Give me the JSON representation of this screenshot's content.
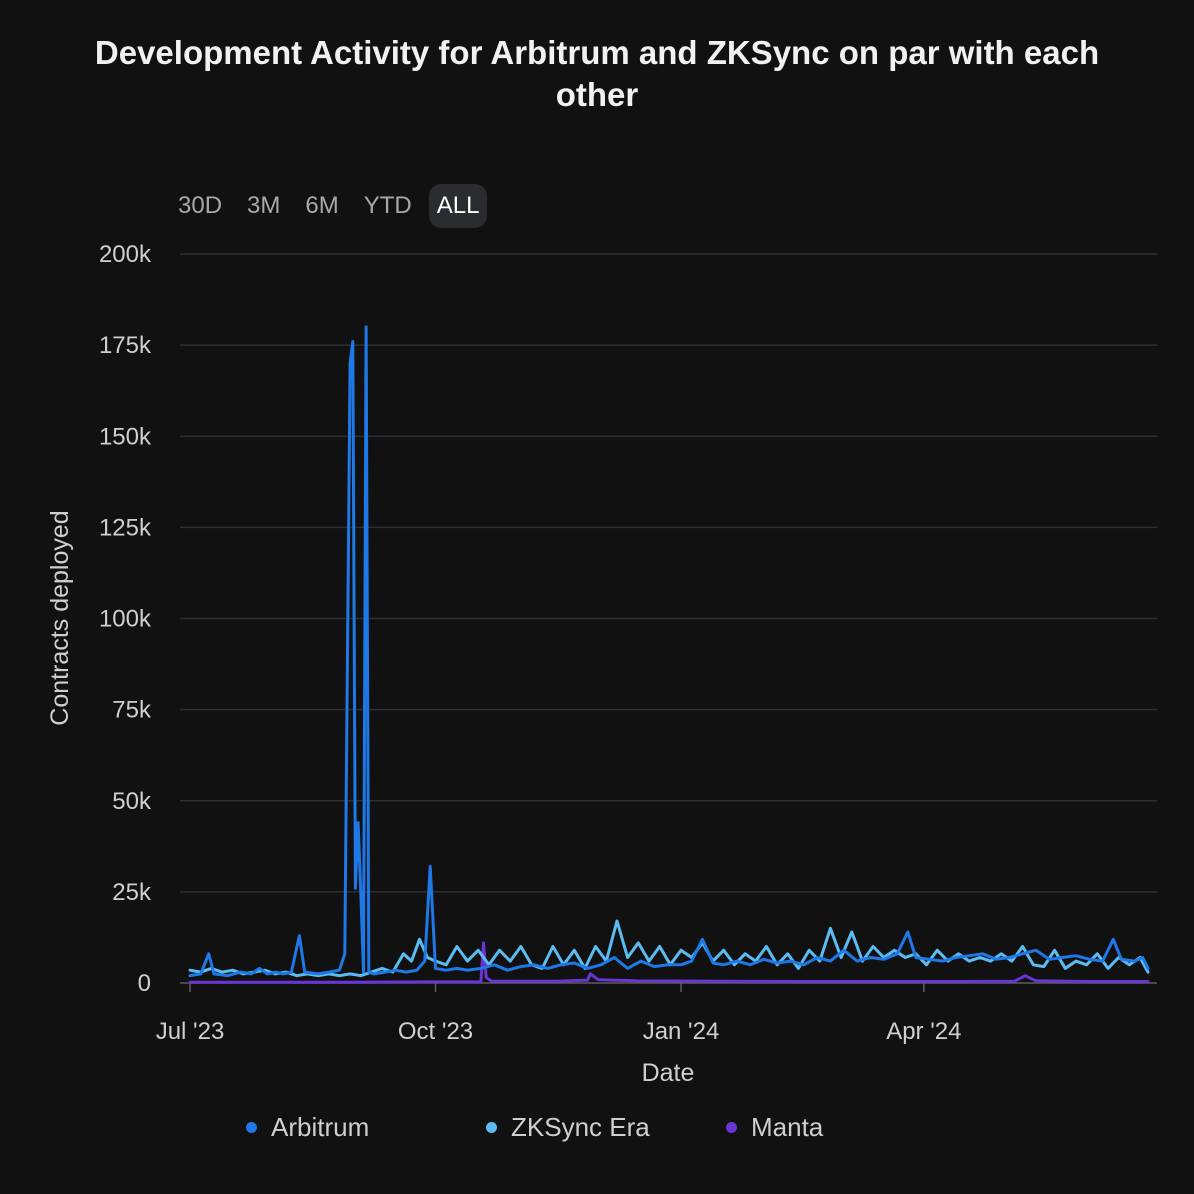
{
  "title": "Development Activity for Arbitrum and ZKSync on par with each other",
  "range_buttons": [
    "30D",
    "3M",
    "6M",
    "YTD",
    "ALL"
  ],
  "active_range": "ALL",
  "chart_data": {
    "type": "line",
    "title": "Development Activity for Arbitrum and ZKSync on par with each other",
    "xlabel": "Date",
    "ylabel": "Contracts deployed",
    "ylim": [
      0,
      200000
    ],
    "yticks": [
      0,
      25000,
      50000,
      75000,
      100000,
      125000,
      150000,
      175000,
      200000
    ],
    "ytick_labels": [
      "0",
      "25k",
      "50k",
      "75k",
      "100k",
      "125k",
      "150k",
      "175k",
      "200k"
    ],
    "xlim": [
      "2023-07-01",
      "2024-06-24"
    ],
    "xticks": [
      "2023-07-01",
      "2023-10-01",
      "2024-01-01",
      "2024-04-01"
    ],
    "xtick_labels": [
      "Jul '23",
      "Oct '23",
      "Jan '24",
      "Apr '24"
    ],
    "grid": true,
    "legend_position": "bottom",
    "series": [
      {
        "name": "Arbitrum",
        "color": "#1e78e6",
        "points": [
          [
            "2023-07-01",
            2000
          ],
          [
            "2023-07-05",
            2500
          ],
          [
            "2023-07-08",
            8000
          ],
          [
            "2023-07-10",
            2500
          ],
          [
            "2023-07-15",
            2000
          ],
          [
            "2023-07-20",
            3000
          ],
          [
            "2023-07-24",
            2500
          ],
          [
            "2023-07-27",
            4000
          ],
          [
            "2023-07-30",
            2500
          ],
          [
            "2023-08-02",
            3000
          ],
          [
            "2023-08-05",
            2500
          ],
          [
            "2023-08-08",
            3000
          ],
          [
            "2023-08-11",
            13000
          ],
          [
            "2023-08-13",
            3000
          ],
          [
            "2023-08-18",
            2500
          ],
          [
            "2023-08-22",
            3000
          ],
          [
            "2023-08-26",
            3500
          ],
          [
            "2023-08-28",
            8000
          ],
          [
            "2023-08-30",
            170000
          ],
          [
            "2023-08-31",
            176000
          ],
          [
            "2023-09-01",
            26000
          ],
          [
            "2023-09-02",
            44000
          ],
          [
            "2023-09-03",
            25000
          ],
          [
            "2023-09-04",
            3000
          ],
          [
            "2023-09-05",
            180000
          ],
          [
            "2023-09-06",
            3000
          ],
          [
            "2023-09-08",
            2500
          ],
          [
            "2023-09-12",
            3000
          ],
          [
            "2023-09-16",
            3500
          ],
          [
            "2023-09-20",
            3000
          ],
          [
            "2023-09-24",
            3500
          ],
          [
            "2023-09-27",
            6000
          ],
          [
            "2023-09-29",
            32000
          ],
          [
            "2023-10-01",
            4000
          ],
          [
            "2023-10-05",
            3500
          ],
          [
            "2023-10-09",
            4000
          ],
          [
            "2023-10-13",
            3500
          ],
          [
            "2023-10-18",
            4000
          ],
          [
            "2023-10-23",
            5000
          ],
          [
            "2023-10-28",
            3500
          ],
          [
            "2023-11-02",
            4500
          ],
          [
            "2023-11-07",
            5000
          ],
          [
            "2023-11-12",
            4000
          ],
          [
            "2023-11-17",
            5000
          ],
          [
            "2023-11-22",
            5500
          ],
          [
            "2023-11-27",
            4000
          ],
          [
            "2023-12-02",
            5000
          ],
          [
            "2023-12-07",
            7000
          ],
          [
            "2023-12-12",
            4000
          ],
          [
            "2023-12-17",
            6000
          ],
          [
            "2023-12-22",
            4500
          ],
          [
            "2023-12-27",
            5000
          ],
          [
            "2024-01-01",
            5000
          ],
          [
            "2024-01-05",
            6000
          ],
          [
            "2024-01-09",
            12000
          ],
          [
            "2024-01-13",
            5500
          ],
          [
            "2024-01-17",
            5000
          ],
          [
            "2024-01-22",
            6000
          ],
          [
            "2024-01-27",
            5000
          ],
          [
            "2024-02-01",
            6500
          ],
          [
            "2024-02-06",
            5500
          ],
          [
            "2024-02-11",
            6000
          ],
          [
            "2024-02-16",
            5000
          ],
          [
            "2024-02-21",
            7000
          ],
          [
            "2024-02-26",
            6000
          ],
          [
            "2024-03-02",
            9000
          ],
          [
            "2024-03-07",
            6000
          ],
          [
            "2024-03-12",
            7000
          ],
          [
            "2024-03-17",
            6500
          ],
          [
            "2024-03-22",
            8000
          ],
          [
            "2024-03-26",
            14000
          ],
          [
            "2024-03-29",
            7000
          ],
          [
            "2024-04-03",
            6500
          ],
          [
            "2024-04-08",
            6000
          ],
          [
            "2024-04-13",
            7000
          ],
          [
            "2024-04-18",
            7500
          ],
          [
            "2024-04-23",
            8000
          ],
          [
            "2024-04-28",
            6500
          ],
          [
            "2024-05-03",
            7000
          ],
          [
            "2024-05-08",
            8000
          ],
          [
            "2024-05-13",
            9000
          ],
          [
            "2024-05-18",
            6500
          ],
          [
            "2024-05-23",
            7000
          ],
          [
            "2024-05-28",
            7500
          ],
          [
            "2024-06-02",
            6500
          ],
          [
            "2024-06-07",
            6000
          ],
          [
            "2024-06-11",
            12000
          ],
          [
            "2024-06-14",
            6500
          ],
          [
            "2024-06-19",
            6000
          ],
          [
            "2024-06-22",
            7000
          ],
          [
            "2024-06-24",
            4000
          ]
        ]
      },
      {
        "name": "ZKSync Era",
        "color": "#5bbcf2",
        "points": [
          [
            "2023-07-01",
            3500
          ],
          [
            "2023-07-05",
            3000
          ],
          [
            "2023-07-09",
            4000
          ],
          [
            "2023-07-13",
            3000
          ],
          [
            "2023-07-17",
            3500
          ],
          [
            "2023-07-21",
            2500
          ],
          [
            "2023-07-25",
            3000
          ],
          [
            "2023-07-29",
            3500
          ],
          [
            "2023-08-02",
            2500
          ],
          [
            "2023-08-06",
            3000
          ],
          [
            "2023-08-10",
            2000
          ],
          [
            "2023-08-14",
            2500
          ],
          [
            "2023-08-18",
            2000
          ],
          [
            "2023-08-22",
            2500
          ],
          [
            "2023-08-26",
            2000
          ],
          [
            "2023-08-30",
            2500
          ],
          [
            "2023-09-03",
            2000
          ],
          [
            "2023-09-07",
            3000
          ],
          [
            "2023-09-11",
            4000
          ],
          [
            "2023-09-15",
            3000
          ],
          [
            "2023-09-19",
            8000
          ],
          [
            "2023-09-22",
            6000
          ],
          [
            "2023-09-25",
            12000
          ],
          [
            "2023-09-28",
            7000
          ],
          [
            "2023-10-01",
            6000
          ],
          [
            "2023-10-05",
            5000
          ],
          [
            "2023-10-09",
            10000
          ],
          [
            "2023-10-13",
            6000
          ],
          [
            "2023-10-17",
            9000
          ],
          [
            "2023-10-21",
            5000
          ],
          [
            "2023-10-25",
            9000
          ],
          [
            "2023-10-29",
            6000
          ],
          [
            "2023-11-02",
            10000
          ],
          [
            "2023-11-06",
            5000
          ],
          [
            "2023-11-10",
            4000
          ],
          [
            "2023-11-14",
            10000
          ],
          [
            "2023-11-18",
            5000
          ],
          [
            "2023-11-22",
            9000
          ],
          [
            "2023-11-26",
            4000
          ],
          [
            "2023-11-30",
            10000
          ],
          [
            "2023-12-04",
            6000
          ],
          [
            "2023-12-08",
            17000
          ],
          [
            "2023-12-12",
            7000
          ],
          [
            "2023-12-16",
            11000
          ],
          [
            "2023-12-20",
            6000
          ],
          [
            "2023-12-24",
            10000
          ],
          [
            "2023-12-28",
            5000
          ],
          [
            "2024-01-01",
            9000
          ],
          [
            "2024-01-05",
            7000
          ],
          [
            "2024-01-09",
            11000
          ],
          [
            "2024-01-13",
            6000
          ],
          [
            "2024-01-17",
            9000
          ],
          [
            "2024-01-21",
            5000
          ],
          [
            "2024-01-25",
            8000
          ],
          [
            "2024-01-29",
            6000
          ],
          [
            "2024-02-02",
            10000
          ],
          [
            "2024-02-06",
            5000
          ],
          [
            "2024-02-10",
            8000
          ],
          [
            "2024-02-14",
            4000
          ],
          [
            "2024-02-18",
            9000
          ],
          [
            "2024-02-22",
            6000
          ],
          [
            "2024-02-26",
            15000
          ],
          [
            "2024-03-01",
            7000
          ],
          [
            "2024-03-05",
            14000
          ],
          [
            "2024-03-09",
            6000
          ],
          [
            "2024-03-13",
            10000
          ],
          [
            "2024-03-17",
            7000
          ],
          [
            "2024-03-21",
            9000
          ],
          [
            "2024-03-25",
            7000
          ],
          [
            "2024-03-29",
            8000
          ],
          [
            "2024-04-02",
            5000
          ],
          [
            "2024-04-06",
            9000
          ],
          [
            "2024-04-10",
            6000
          ],
          [
            "2024-04-14",
            8000
          ],
          [
            "2024-04-18",
            6000
          ],
          [
            "2024-04-22",
            7000
          ],
          [
            "2024-04-26",
            6000
          ],
          [
            "2024-04-30",
            8000
          ],
          [
            "2024-05-04",
            6000
          ],
          [
            "2024-05-08",
            10000
          ],
          [
            "2024-05-12",
            5000
          ],
          [
            "2024-05-16",
            4500
          ],
          [
            "2024-05-20",
            9000
          ],
          [
            "2024-05-24",
            4000
          ],
          [
            "2024-05-28",
            6000
          ],
          [
            "2024-06-01",
            5000
          ],
          [
            "2024-06-05",
            8000
          ],
          [
            "2024-06-09",
            4000
          ],
          [
            "2024-06-13",
            7000
          ],
          [
            "2024-06-17",
            5000
          ],
          [
            "2024-06-21",
            7000
          ],
          [
            "2024-06-24",
            3000
          ]
        ]
      },
      {
        "name": "Manta",
        "color": "#6a34d6",
        "points": [
          [
            "2023-07-01",
            200
          ],
          [
            "2023-08-01",
            200
          ],
          [
            "2023-09-01",
            200
          ],
          [
            "2023-10-01",
            300
          ],
          [
            "2023-10-18",
            300
          ],
          [
            "2023-10-19",
            11000
          ],
          [
            "2023-10-20",
            1500
          ],
          [
            "2023-10-22",
            500
          ],
          [
            "2023-11-15",
            500
          ],
          [
            "2023-11-27",
            800
          ],
          [
            "2023-11-28",
            2500
          ],
          [
            "2023-12-01",
            900
          ],
          [
            "2023-12-15",
            600
          ],
          [
            "2024-01-15",
            500
          ],
          [
            "2024-02-15",
            400
          ],
          [
            "2024-03-15",
            400
          ],
          [
            "2024-04-15",
            400
          ],
          [
            "2024-05-05",
            500
          ],
          [
            "2024-05-09",
            2000
          ],
          [
            "2024-05-13",
            600
          ],
          [
            "2024-06-01",
            400
          ],
          [
            "2024-06-24",
            400
          ]
        ]
      }
    ]
  }
}
